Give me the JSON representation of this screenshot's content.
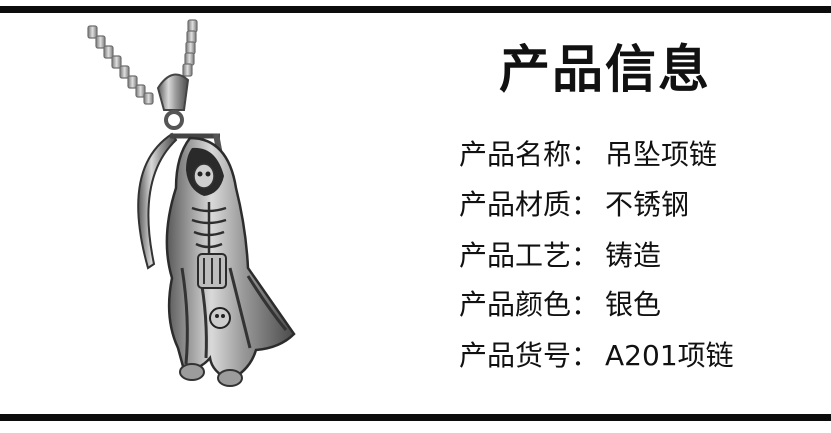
{
  "info": {
    "title": "产品信息",
    "rows": [
      {
        "label": "产品名称",
        "colon": "：",
        "value": "吊坠项链"
      },
      {
        "label": "产品材质",
        "colon": "：",
        "value": "不锈钢"
      },
      {
        "label": "产品工艺",
        "colon": "：",
        "value": "铸造"
      },
      {
        "label": "产品颜色",
        "colon": "：",
        "value": "银色"
      },
      {
        "label": "产品货号",
        "colon": "：",
        "value": "A201项链"
      }
    ]
  },
  "colors": {
    "bar": "#0c0c0c",
    "text": "#111111",
    "metal": "#b9b9b9"
  },
  "image": {
    "subject": "grim-reaper-pendant-icon"
  }
}
